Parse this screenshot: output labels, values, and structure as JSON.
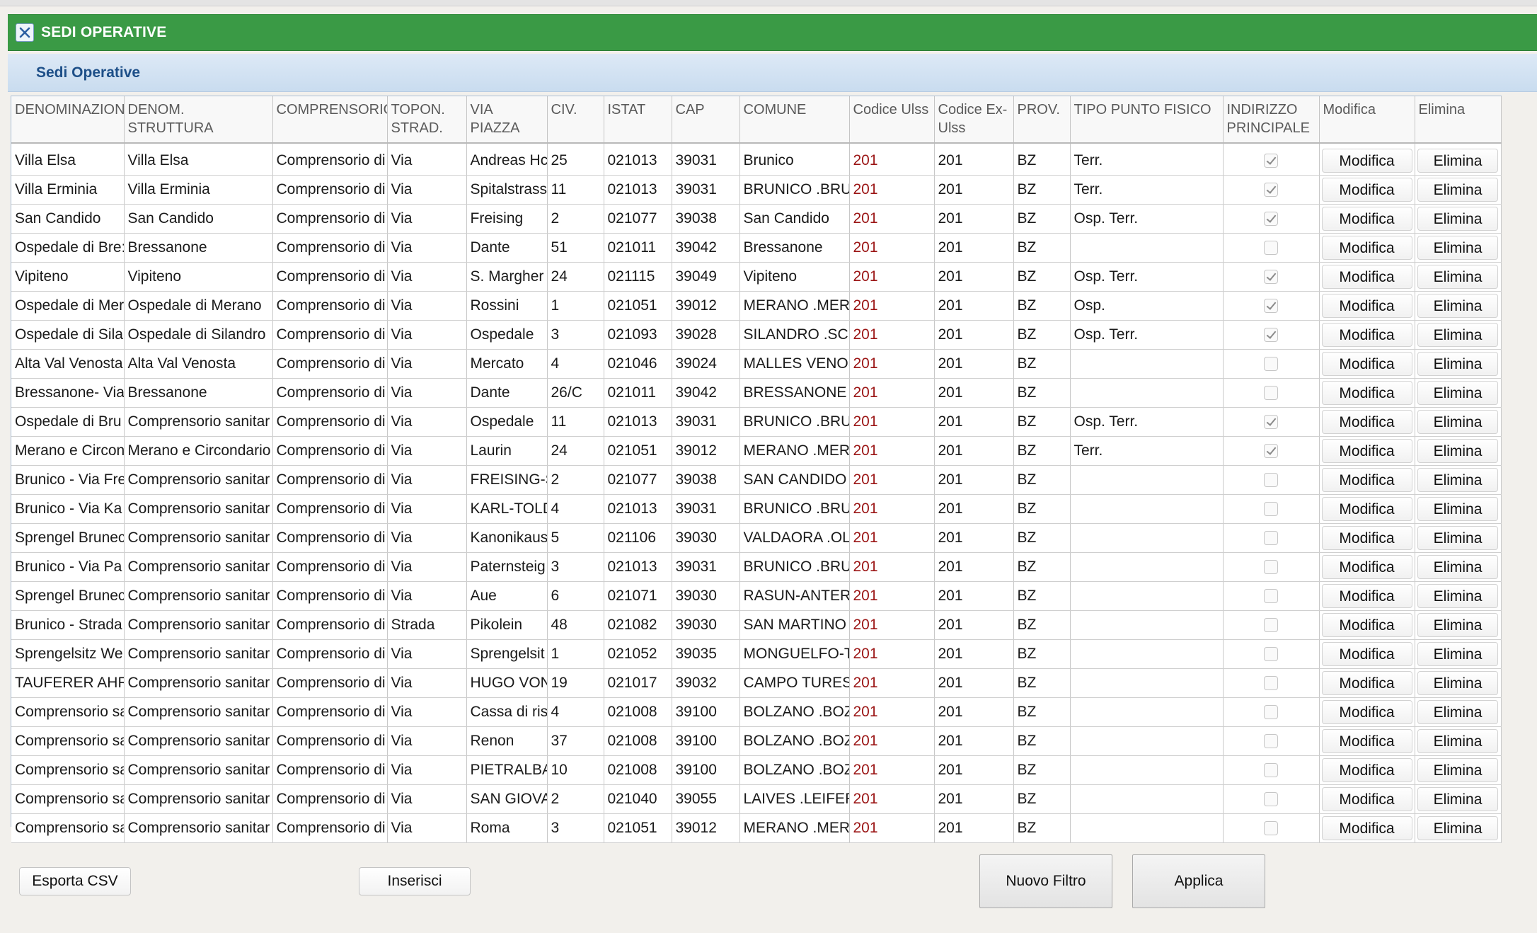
{
  "window": {
    "title": "SEDI OPERATIVE"
  },
  "panel": {
    "title": "Sedi Operative"
  },
  "table": {
    "headers": [
      "DENOMINAZIONE",
      "DENOM. STRUTTURA",
      "COMPRENSORIO",
      "TOPON. STRAD.",
      "VIA PIAZZA",
      "CIV.",
      "ISTAT",
      "CAP",
      "COMUNE",
      "Codice Ulss",
      "Codice Ex-Ulss",
      "PROV.",
      "TIPO PUNTO FISICO",
      "INDIRIZZO PRINCIPALE",
      "Modifica",
      "Elimina"
    ],
    "rows": [
      {
        "den": "Villa Elsa",
        "struttura": "Villa Elsa",
        "comprensorio": "Comprensorio di",
        "topon": "Via",
        "via": "Andreas Hc",
        "civ": "25",
        "istat": "021013",
        "cap": "39031",
        "comune": "Brunico",
        "ulss": "201",
        "exulss": "201",
        "prov": "BZ",
        "tipo": "Terr.",
        "principale": true
      },
      {
        "den": "Villa Erminia",
        "struttura": "Villa Erminia",
        "comprensorio": "Comprensorio di",
        "topon": "Via",
        "via": "Spitalstrass",
        "civ": "11",
        "istat": "021013",
        "cap": "39031",
        "comune": "BRUNICO .BRU",
        "ulss": "201",
        "exulss": "201",
        "prov": "BZ",
        "tipo": "Terr.",
        "principale": true
      },
      {
        "den": "San Candido",
        "struttura": "San Candido",
        "comprensorio": "Comprensorio di",
        "topon": "Via",
        "via": "Freising",
        "civ": "2",
        "istat": "021077",
        "cap": "39038",
        "comune": "San Candido",
        "ulss": "201",
        "exulss": "201",
        "prov": "BZ",
        "tipo": "Osp. Terr.",
        "principale": true
      },
      {
        "den": "Ospedale di Bre:",
        "struttura": "Bressanone",
        "comprensorio": "Comprensorio di",
        "topon": "Via",
        "via": "Dante",
        "civ": "51",
        "istat": "021011",
        "cap": "39042",
        "comune": "Bressanone",
        "ulss": "201",
        "exulss": "201",
        "prov": "BZ",
        "tipo": "",
        "principale": false
      },
      {
        "den": "Vipiteno",
        "struttura": "Vipiteno",
        "comprensorio": "Comprensorio di",
        "topon": "Via",
        "via": "S. Margher",
        "civ": "24",
        "istat": "021115",
        "cap": "39049",
        "comune": "Vipiteno",
        "ulss": "201",
        "exulss": "201",
        "prov": "BZ",
        "tipo": "Osp. Terr.",
        "principale": true
      },
      {
        "den": "Ospedale di Mer",
        "struttura": "Ospedale di Merano",
        "comprensorio": "Comprensorio di",
        "topon": "Via",
        "via": "Rossini",
        "civ": "1",
        "istat": "021051",
        "cap": "39012",
        "comune": "MERANO .MER/",
        "ulss": "201",
        "exulss": "201",
        "prov": "BZ",
        "tipo": "Osp.",
        "principale": true
      },
      {
        "den": "Ospedale di Sila",
        "struttura": "Ospedale di Silandro",
        "comprensorio": "Comprensorio di",
        "topon": "Via",
        "via": "Ospedale",
        "civ": "3",
        "istat": "021093",
        "cap": "39028",
        "comune": "SILANDRO .SCI",
        "ulss": "201",
        "exulss": "201",
        "prov": "BZ",
        "tipo": "Osp. Terr.",
        "principale": true
      },
      {
        "den": "Alta Val Venosta",
        "struttura": "Alta Val Venosta",
        "comprensorio": "Comprensorio di",
        "topon": "Via",
        "via": "Mercato",
        "civ": "4",
        "istat": "021046",
        "cap": "39024",
        "comune": "MALLES VENOS",
        "ulss": "201",
        "exulss": "201",
        "prov": "BZ",
        "tipo": "",
        "principale": false
      },
      {
        "den": "Bressanone- Via",
        "struttura": "Bressanone",
        "comprensorio": "Comprensorio di",
        "topon": "Via",
        "via": "Dante",
        "civ": "26/C",
        "istat": "021011",
        "cap": "39042",
        "comune": "BRESSANONE .",
        "ulss": "201",
        "exulss": "201",
        "prov": "BZ",
        "tipo": "",
        "principale": false
      },
      {
        "den": "Ospedale di Bru",
        "struttura": "Comprensorio sanitar",
        "comprensorio": "Comprensorio di",
        "topon": "Via",
        "via": "Ospedale",
        "civ": "11",
        "istat": "021013",
        "cap": "39031",
        "comune": "BRUNICO .BRU",
        "ulss": "201",
        "exulss": "201",
        "prov": "BZ",
        "tipo": "Osp. Terr.",
        "principale": true
      },
      {
        "den": "Merano e Circon",
        "struttura": "Merano e Circondario",
        "comprensorio": "Comprensorio di",
        "topon": "Via",
        "via": "Laurin",
        "civ": "24",
        "istat": "021051",
        "cap": "39012",
        "comune": "MERANO .MER/",
        "ulss": "201",
        "exulss": "201",
        "prov": "BZ",
        "tipo": "Terr.",
        "principale": true
      },
      {
        "den": "Brunico - Via Fre",
        "struttura": "Comprensorio sanitar",
        "comprensorio": "Comprensorio di",
        "topon": "Via",
        "via": "FREISING-S",
        "civ": "2",
        "istat": "021077",
        "cap": "39038",
        "comune": "SAN CANDIDO",
        "ulss": "201",
        "exulss": "201",
        "prov": "BZ",
        "tipo": "",
        "principale": false
      },
      {
        "den": "Brunico - Via Ka",
        "struttura": "Comprensorio sanitar",
        "comprensorio": "Comprensorio di",
        "topon": "Via",
        "via": "KARL-TOLD",
        "civ": "4",
        "istat": "021013",
        "cap": "39031",
        "comune": "BRUNICO .BRU",
        "ulss": "201",
        "exulss": "201",
        "prov": "BZ",
        "tipo": "",
        "principale": false
      },
      {
        "den": "Sprengel Brunec",
        "struttura": "Comprensorio sanitar",
        "comprensorio": "Comprensorio di",
        "topon": "Via",
        "via": "Kanonikaus",
        "civ": "5",
        "istat": "021106",
        "cap": "39030",
        "comune": "VALDAORA .OL",
        "ulss": "201",
        "exulss": "201",
        "prov": "BZ",
        "tipo": "",
        "principale": false
      },
      {
        "den": "Brunico - Via Pa",
        "struttura": "Comprensorio sanitar",
        "comprensorio": "Comprensorio di",
        "topon": "Via",
        "via": "Paternsteig",
        "civ": "3",
        "istat": "021013",
        "cap": "39031",
        "comune": "BRUNICO .BRU",
        "ulss": "201",
        "exulss": "201",
        "prov": "BZ",
        "tipo": "",
        "principale": false
      },
      {
        "den": "Sprengel Brunec",
        "struttura": "Comprensorio sanitar",
        "comprensorio": "Comprensorio di",
        "topon": "Via",
        "via": "Aue",
        "civ": "6",
        "istat": "021071",
        "cap": "39030",
        "comune": "RASUN-ANTERS",
        "ulss": "201",
        "exulss": "201",
        "prov": "BZ",
        "tipo": "",
        "principale": false
      },
      {
        "den": "Brunico - Strada",
        "struttura": "Comprensorio sanitar",
        "comprensorio": "Comprensorio di",
        "topon": "Strada",
        "via": "Pikolein",
        "civ": "48",
        "istat": "021082",
        "cap": "39030",
        "comune": "SAN MARTINO",
        "ulss": "201",
        "exulss": "201",
        "prov": "BZ",
        "tipo": "",
        "principale": false
      },
      {
        "den": "Sprengelsitz We",
        "struttura": "Comprensorio sanitar",
        "comprensorio": "Comprensorio di",
        "topon": "Via",
        "via": "Sprengelsit",
        "civ": "1",
        "istat": "021052",
        "cap": "39035",
        "comune": "MONGUELFO-TI",
        "ulss": "201",
        "exulss": "201",
        "prov": "BZ",
        "tipo": "",
        "principale": false
      },
      {
        "den": "TAUFERER AHRI",
        "struttura": "Comprensorio sanitar",
        "comprensorio": "Comprensorio di",
        "topon": "Via",
        "via": "HUGO VON",
        "civ": "19",
        "istat": "021017",
        "cap": "39032",
        "comune": "CAMPO TURES",
        "ulss": "201",
        "exulss": "201",
        "prov": "BZ",
        "tipo": "",
        "principale": false
      },
      {
        "den": "Comprensorio sa",
        "struttura": "Comprensorio sanitar",
        "comprensorio": "Comprensorio di",
        "topon": "Via",
        "via": "Cassa di ris",
        "civ": "4",
        "istat": "021008",
        "cap": "39100",
        "comune": "BOLZANO .BOZ",
        "ulss": "201",
        "exulss": "201",
        "prov": "BZ",
        "tipo": "",
        "principale": false
      },
      {
        "den": "Comprensorio sa",
        "struttura": "Comprensorio sanitar",
        "comprensorio": "Comprensorio di",
        "topon": "Via",
        "via": "Renon",
        "civ": "37",
        "istat": "021008",
        "cap": "39100",
        "comune": "BOLZANO .BOZ",
        "ulss": "201",
        "exulss": "201",
        "prov": "BZ",
        "tipo": "",
        "principale": false
      },
      {
        "den": "Comprensorio sa",
        "struttura": "Comprensorio sanitar",
        "comprensorio": "Comprensorio di",
        "topon": "Via",
        "via": "PIETRALBA",
        "civ": "10",
        "istat": "021008",
        "cap": "39100",
        "comune": "BOLZANO .BOZ",
        "ulss": "201",
        "exulss": "201",
        "prov": "BZ",
        "tipo": "",
        "principale": false
      },
      {
        "den": "Comprensorio sa",
        "struttura": "Comprensorio sanitar",
        "comprensorio": "Comprensorio di",
        "topon": "Via",
        "via": "SAN GIOVA",
        "civ": "2",
        "istat": "021040",
        "cap": "39055",
        "comune": "LAIVES .LEIFER",
        "ulss": "201",
        "exulss": "201",
        "prov": "BZ",
        "tipo": "",
        "principale": false
      },
      {
        "den": "Comprensorio sa",
        "struttura": "Comprensorio sanitar",
        "comprensorio": "Comprensorio di",
        "topon": "Via",
        "via": "Roma",
        "civ": "3",
        "istat": "021051",
        "cap": "39012",
        "comune": "MERANO .MER/",
        "ulss": "201",
        "exulss": "201",
        "prov": "BZ",
        "tipo": "",
        "principale": false
      }
    ],
    "modifica_label": "Modifica",
    "elimina_label": "Elimina"
  },
  "footer": {
    "export_label": "Esporta CSV",
    "insert_label": "Inserisci",
    "new_filter_label": "Nuovo Filtro",
    "apply_label": "Applica"
  },
  "colors": {
    "titlebar": "#3a9a45",
    "section_title": "#1d4f88",
    "ulss_code": "#9b1515"
  },
  "icons": {
    "close": "close-icon"
  }
}
